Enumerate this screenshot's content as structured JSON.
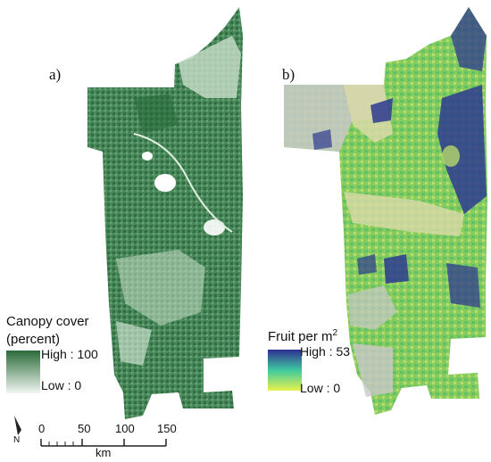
{
  "panel_a": {
    "label": "a)",
    "legend": {
      "title_line1": "Canopy cover",
      "title_line2": "(percent)",
      "high": "High : 100",
      "low": "Low : 0",
      "color_high": "#2a6b3a",
      "color_low": "#f2f7f2"
    }
  },
  "panel_b": {
    "label": "b)",
    "legend": {
      "title": "Fruit per m",
      "title_sup": "2",
      "high": "High : 53",
      "low": "Low : 0",
      "color_high": "#2d2f8f",
      "color_mid": "#3fc9a0",
      "color_low": "#e8f24a"
    }
  },
  "north_arrow": {
    "label": "N"
  },
  "scale_bar": {
    "ticks": [
      "0",
      "50",
      "100",
      "150"
    ],
    "unit": "km"
  },
  "colors": {
    "canopy_fill": "#3d7f4f",
    "canopy_light": "#c9dfca",
    "fruit_base": "#8fd06a",
    "fruit_gray": "#c8c8c8",
    "fruit_tan": "#d9d9a8",
    "fruit_dark": "#2d3a8f"
  }
}
